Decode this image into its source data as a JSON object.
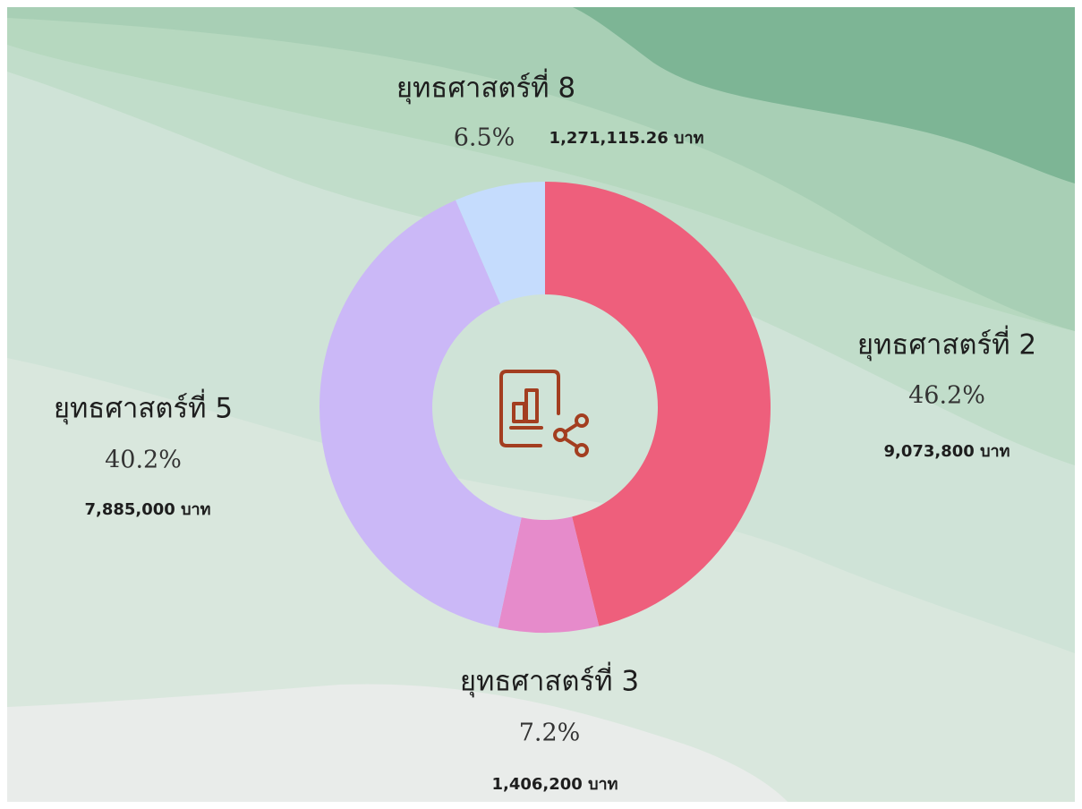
{
  "chart_data": {
    "type": "donut",
    "categories": [
      "ยุทธศาสตร์ที่ 2",
      "ยุทธศาสตร์ที่ 3",
      "ยุทธศาสตร์ที่ 5",
      "ยุทธศาสตร์ที่ 8"
    ],
    "values": [
      46.2,
      7.2,
      40.2,
      6.5
    ],
    "value_labels": [
      "46.2%",
      "7.2%",
      "40.2%",
      "6.5%"
    ],
    "amounts": [
      9073800,
      1406200,
      7885000,
      1271115.26
    ],
    "amount_labels": [
      "9,073,800 บาท",
      "1,406,200 บาท",
      "7,885,000 บาท",
      "1,271,115.26 บาท"
    ],
    "colors": [
      "#ee5f7c",
      "#e68bcb",
      "#cbb8f7",
      "#c5dcfd"
    ]
  }
}
